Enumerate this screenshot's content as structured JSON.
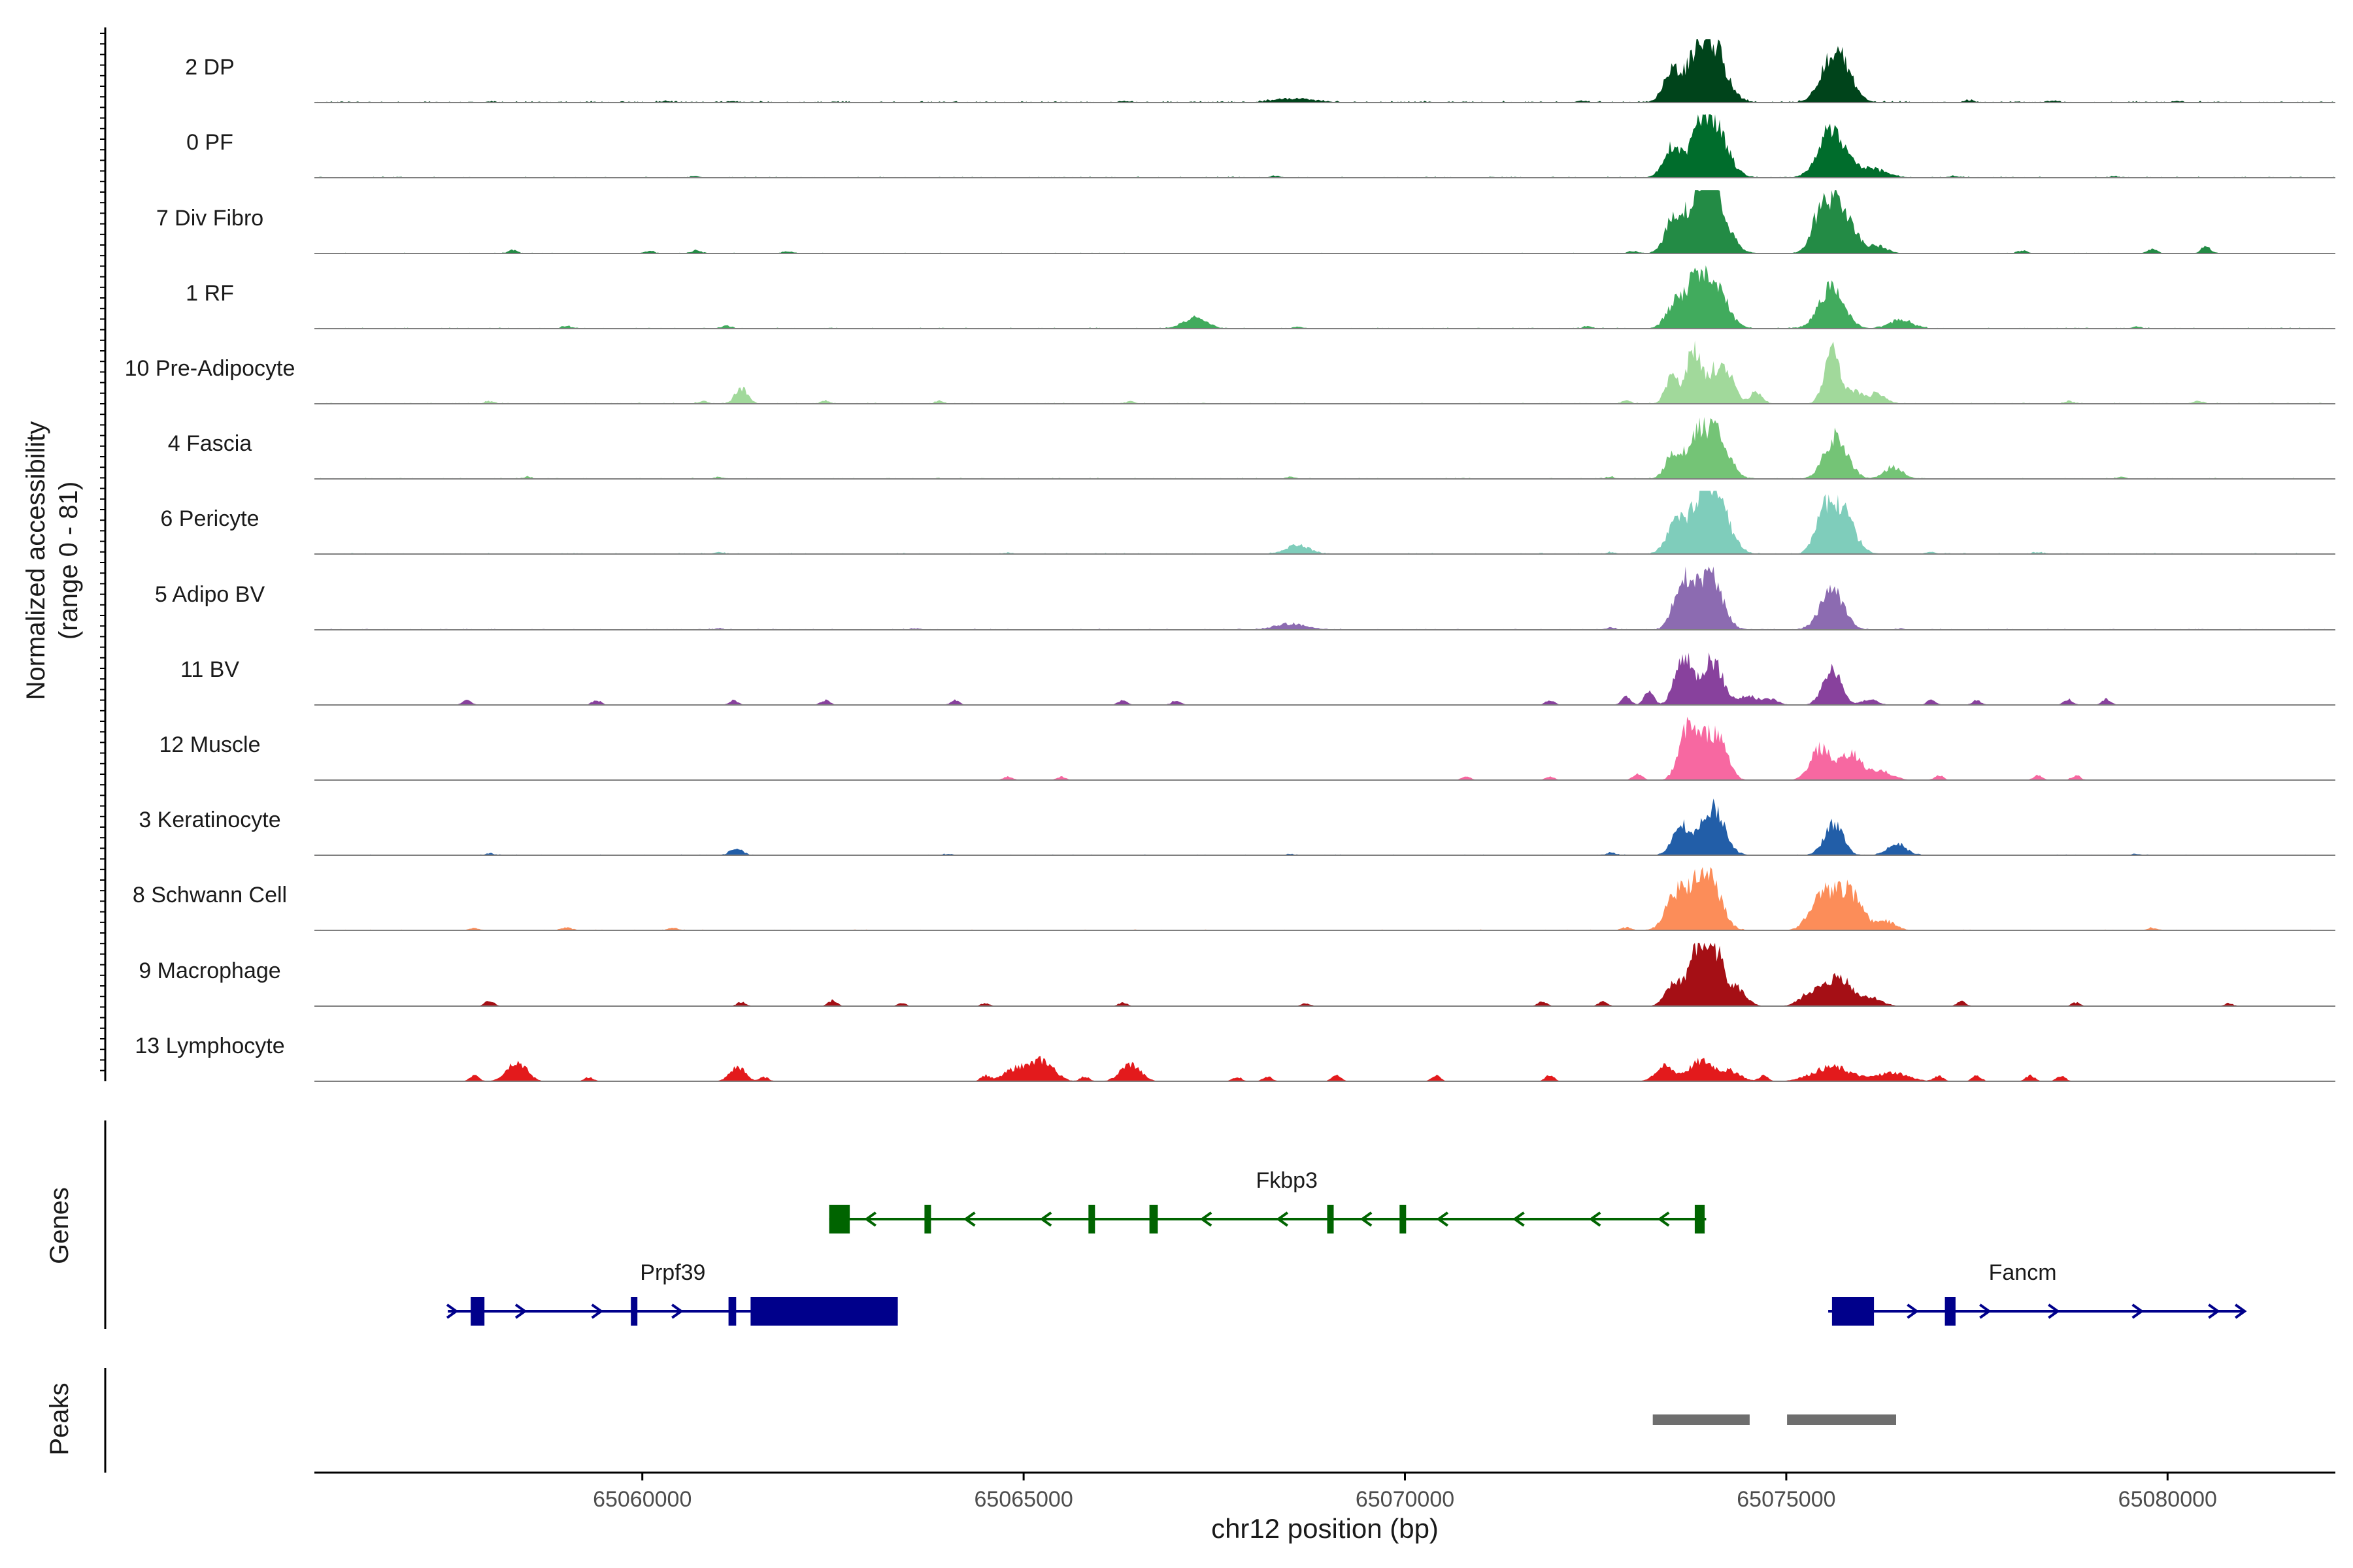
{
  "chart_data": {
    "type": "area",
    "title": "",
    "xlabel": "chr12 position (bp)",
    "ylabel": "Normalized accessibility\n(range 0 - 81)",
    "ylabel_lines": [
      "Normalized accessibility",
      "(range 0 - 81)"
    ],
    "yrange": [
      0,
      81
    ],
    "xlim": [
      65055700,
      65082200
    ],
    "x_ticks": [
      65060000,
      65065000,
      65070000,
      65075000,
      65080000
    ],
    "x_tick_labels": [
      "65060000",
      "65065000",
      "65070000",
      "65075000",
      "65080000"
    ],
    "panel_labels": {
      "genes": "Genes",
      "peaks": "Peaks"
    },
    "tracks": [
      {
        "name": "2 DP",
        "color": "#00441b",
        "bg": 0.03,
        "peaks": [
          [
            65073500,
            0.55,
            110
          ],
          [
            65073800,
            0.45,
            120
          ],
          [
            65074020,
            1.0,
            180
          ],
          [
            65075650,
            0.92,
            170
          ],
          [
            65068550,
            0.07,
            250
          ]
        ],
        "noise": [
          [
            65058000,
            0.015
          ],
          [
            65060300,
            0.02
          ],
          [
            65061200,
            0.02
          ],
          [
            65066300,
            0.02
          ],
          [
            65072300,
            0.03
          ],
          [
            65077400,
            0.04
          ],
          [
            65078500,
            0.03
          ],
          [
            65080100,
            0.02
          ]
        ]
      },
      {
        "name": "0 PF",
        "color": "#006d2c",
        "bg": 0.02,
        "peaks": [
          [
            65073500,
            0.55,
            110
          ],
          [
            65073850,
            0.5,
            120
          ],
          [
            65074030,
            0.95,
            180
          ],
          [
            65075600,
            0.85,
            170
          ],
          [
            65076100,
            0.15,
            200
          ]
        ],
        "noise": [
          [
            65060700,
            0.02
          ],
          [
            65068300,
            0.03
          ],
          [
            65077200,
            0.03
          ],
          [
            65079300,
            0.02
          ]
        ]
      },
      {
        "name": "7 Div Fibro",
        "color": "#238b45",
        "bg": 0.015,
        "peaks": [
          [
            65073550,
            0.7,
            120
          ],
          [
            65073850,
            0.75,
            120
          ],
          [
            65074050,
            1.0,
            170
          ],
          [
            65075450,
            0.55,
            120
          ],
          [
            65075700,
            0.85,
            170
          ],
          [
            65076200,
            0.12,
            120
          ]
        ],
        "noise": [
          [
            65058300,
            0.06
          ],
          [
            65060100,
            0.04
          ],
          [
            65060700,
            0.05
          ],
          [
            65061900,
            0.04
          ],
          [
            65073000,
            0.04
          ],
          [
            65078100,
            0.05
          ],
          [
            65079800,
            0.08
          ],
          [
            65080500,
            0.12
          ]
        ]
      },
      {
        "name": "1 RF",
        "color": "#41ab5d",
        "bg": 0.02,
        "peaks": [
          [
            65073550,
            0.45,
            120
          ],
          [
            65073800,
            0.55,
            120
          ],
          [
            65074030,
            0.85,
            170
          ],
          [
            65075600,
            0.72,
            160
          ],
          [
            65076500,
            0.15,
            150
          ],
          [
            65067250,
            0.18,
            150
          ]
        ],
        "noise": [
          [
            65059000,
            0.04
          ],
          [
            65061100,
            0.05
          ],
          [
            65068600,
            0.03
          ],
          [
            65072400,
            0.04
          ],
          [
            65079600,
            0.03
          ]
        ]
      },
      {
        "name": "10 Pre-Adipocyte",
        "color": "#a1d99b",
        "bg": 0.02,
        "peaks": [
          [
            65073500,
            0.5,
            80
          ],
          [
            65073780,
            0.95,
            90
          ],
          [
            65074050,
            0.55,
            100
          ],
          [
            65074250,
            0.45,
            90
          ],
          [
            65074600,
            0.2,
            80
          ],
          [
            65075600,
            0.92,
            100
          ],
          [
            65075900,
            0.2,
            100
          ],
          [
            65076200,
            0.18,
            100
          ],
          [
            65061300,
            0.28,
            80
          ]
        ],
        "noise": [
          [
            65058000,
            0.04
          ],
          [
            65060800,
            0.05
          ],
          [
            65062400,
            0.05
          ],
          [
            65063900,
            0.04
          ],
          [
            65066400,
            0.04
          ],
          [
            65072900,
            0.05
          ],
          [
            65078700,
            0.04
          ],
          [
            65080400,
            0.05
          ]
        ]
      },
      {
        "name": "4 Fascia",
        "color": "#74c476",
        "bg": 0.02,
        "peaks": [
          [
            65073520,
            0.45,
            100
          ],
          [
            65073800,
            0.6,
            110
          ],
          [
            65074060,
            0.85,
            160
          ],
          [
            65075650,
            0.72,
            150
          ],
          [
            65076400,
            0.2,
            120
          ]
        ],
        "noise": [
          [
            65058500,
            0.03
          ],
          [
            65061000,
            0.03
          ],
          [
            65068500,
            0.03
          ],
          [
            65072700,
            0.03
          ],
          [
            65079400,
            0.03
          ]
        ]
      },
      {
        "name": "6 Pericyte",
        "color": "#7fcdbb",
        "bg": 0.02,
        "peaks": [
          [
            65073550,
            0.5,
            120
          ],
          [
            65073850,
            0.6,
            140
          ],
          [
            65074070,
            1.0,
            170
          ],
          [
            65075500,
            0.55,
            120
          ],
          [
            65075720,
            0.75,
            160
          ],
          [
            65068600,
            0.15,
            150
          ]
        ],
        "noise": [
          [
            65061000,
            0.03
          ],
          [
            65064800,
            0.02
          ],
          [
            65072700,
            0.03
          ],
          [
            65076900,
            0.03
          ],
          [
            65078300,
            0.03
          ]
        ]
      },
      {
        "name": "5 Adipo BV",
        "color": "#8c6bb1",
        "bg": 0.02,
        "peaks": [
          [
            65073650,
            0.85,
            120
          ],
          [
            65074000,
            1.0,
            150
          ],
          [
            65075600,
            0.72,
            150
          ],
          [
            65068500,
            0.1,
            200
          ]
        ],
        "noise": [
          [
            65061000,
            0.02
          ],
          [
            65063600,
            0.02
          ],
          [
            65072700,
            0.03
          ],
          [
            65076500,
            0.02
          ]
        ]
      },
      {
        "name": "11 BV",
        "color": "#88419d",
        "bg": 0.0,
        "peaks": [
          [
            65073650,
            0.8,
            110
          ],
          [
            65074020,
            0.8,
            140
          ],
          [
            65074500,
            0.15,
            120
          ],
          [
            65075600,
            0.6,
            120
          ],
          [
            65074800,
            0.1,
            100
          ],
          [
            65076100,
            0.1,
            100
          ]
        ],
        "noise": [
          [
            65057700,
            0.08
          ],
          [
            65059400,
            0.08
          ],
          [
            65061200,
            0.08
          ],
          [
            65062400,
            0.08
          ],
          [
            65064100,
            0.08
          ],
          [
            65066300,
            0.08
          ],
          [
            65067000,
            0.08
          ],
          [
            65071900,
            0.08
          ],
          [
            65072900,
            0.14
          ],
          [
            65073200,
            0.25
          ],
          [
            65076900,
            0.08
          ],
          [
            65077500,
            0.08
          ],
          [
            65078700,
            0.1
          ],
          [
            65079200,
            0.1
          ]
        ]
      },
      {
        "name": "12 Muscle",
        "color": "#f768a1",
        "bg": 0.0,
        "peaks": [
          [
            65073700,
            0.9,
            110
          ],
          [
            65073950,
            0.6,
            120
          ],
          [
            65074150,
            0.55,
            110
          ],
          [
            65075450,
            0.55,
            130
          ],
          [
            65075850,
            0.45,
            140
          ],
          [
            65076250,
            0.15,
            150
          ]
        ],
        "noise": [
          [
            65064800,
            0.06
          ],
          [
            65065500,
            0.06
          ],
          [
            65070800,
            0.06
          ],
          [
            65071900,
            0.06
          ],
          [
            65073050,
            0.12
          ],
          [
            65077000,
            0.08
          ],
          [
            65078300,
            0.08
          ],
          [
            65078800,
            0.08
          ]
        ]
      },
      {
        "name": "3 Keratinocyte",
        "color": "#225ea8",
        "bg": 0.015,
        "peaks": [
          [
            65073620,
            0.5,
            110
          ],
          [
            65074030,
            0.85,
            150
          ],
          [
            65075620,
            0.55,
            120
          ],
          [
            65076450,
            0.2,
            120
          ],
          [
            65061230,
            0.12,
            80
          ]
        ],
        "noise": [
          [
            65058000,
            0.03
          ],
          [
            65064000,
            0.02
          ],
          [
            65068500,
            0.02
          ],
          [
            65072700,
            0.04
          ],
          [
            65079600,
            0.02
          ]
        ]
      },
      {
        "name": "8 Schwann Cell",
        "color": "#fc8d59",
        "bg": 0.015,
        "peaks": [
          [
            65073550,
            0.6,
            130
          ],
          [
            65073850,
            0.75,
            140
          ],
          [
            65074060,
            0.6,
            130
          ],
          [
            65075450,
            0.6,
            140
          ],
          [
            65075800,
            0.7,
            170
          ],
          [
            65076300,
            0.15,
            130
          ]
        ],
        "noise": [
          [
            65057800,
            0.04
          ],
          [
            65059000,
            0.05
          ],
          [
            65060400,
            0.04
          ],
          [
            65072900,
            0.05
          ],
          [
            65079800,
            0.04
          ]
        ]
      },
      {
        "name": "9 Macrophage",
        "color": "#a50f15",
        "bg": 0.0,
        "peaks": [
          [
            65073550,
            0.4,
            120
          ],
          [
            65073820,
            0.85,
            100
          ],
          [
            65074050,
            1.0,
            120
          ],
          [
            65074350,
            0.3,
            120
          ],
          [
            65075350,
            0.25,
            150
          ],
          [
            65075700,
            0.5,
            150
          ],
          [
            65076100,
            0.15,
            150
          ]
        ],
        "noise": [
          [
            65058000,
            0.1
          ],
          [
            65061300,
            0.07
          ],
          [
            65062500,
            0.1
          ],
          [
            65063400,
            0.05
          ],
          [
            65064500,
            0.05
          ],
          [
            65066300,
            0.06
          ],
          [
            65068700,
            0.05
          ],
          [
            65071800,
            0.08
          ],
          [
            65072600,
            0.08
          ],
          [
            65077300,
            0.08
          ],
          [
            65078800,
            0.06
          ],
          [
            65080800,
            0.05
          ]
        ]
      },
      {
        "name": "13 Lymphocyte",
        "color": "#e31a1c",
        "bg": 0.0,
        "peaks": [
          [
            65058350,
            0.35,
            130
          ],
          [
            65061250,
            0.25,
            100
          ],
          [
            65064900,
            0.22,
            150
          ],
          [
            65065250,
            0.35,
            150
          ],
          [
            65066400,
            0.3,
            130
          ],
          [
            65073400,
            0.25,
            120
          ],
          [
            65073900,
            0.35,
            180
          ],
          [
            65074300,
            0.15,
            120
          ],
          [
            65075600,
            0.25,
            250
          ],
          [
            65076400,
            0.15,
            200
          ]
        ],
        "noise": [
          [
            65057800,
            0.1
          ],
          [
            65059300,
            0.07
          ],
          [
            65061600,
            0.07
          ],
          [
            65064500,
            0.1
          ],
          [
            65065800,
            0.08
          ],
          [
            65067800,
            0.08
          ],
          [
            65068200,
            0.08
          ],
          [
            65069100,
            0.1
          ],
          [
            65070400,
            0.1
          ],
          [
            65071900,
            0.1
          ],
          [
            65074700,
            0.1
          ],
          [
            65077000,
            0.1
          ],
          [
            65077500,
            0.1
          ],
          [
            65078200,
            0.1
          ],
          [
            65078600,
            0.1
          ]
        ]
      }
    ],
    "genes": [
      {
        "name": "Fkbp3",
        "strand": "-",
        "color": "#006400",
        "start": 65062450,
        "end": 65073950,
        "exons": [
          [
            65062450,
            65062720,
            "utr"
          ],
          [
            65063700,
            65063780,
            "cds"
          ],
          [
            65065850,
            65065920,
            "cds"
          ],
          [
            65066650,
            65066760,
            "cds"
          ],
          [
            65068980,
            65069060,
            "cds"
          ],
          [
            65069930,
            65070010,
            "cds"
          ],
          [
            65073800,
            65073930,
            "cds"
          ]
        ],
        "arrows": [
          65063000,
          65064300,
          65065300,
          65067400,
          65068400,
          65069500,
          65070500,
          65071500,
          65072500,
          65073400
        ]
      },
      {
        "name": "Prpf39",
        "strand": "+",
        "color": "#00008b",
        "start": 65057450,
        "end": 65063350,
        "exons": [
          [
            65057750,
            65057930,
            "cds"
          ],
          [
            65059850,
            65059920,
            "cds"
          ],
          [
            65061130,
            65061230,
            "cds"
          ],
          [
            65061420,
            65063350,
            "utr"
          ]
        ],
        "arrows": [
          65057500,
          65058400,
          65059400,
          65060450
        ]
      },
      {
        "name": "Fancm",
        "strand": "+",
        "color": "#00008b",
        "start": 65075550,
        "end": 65081000,
        "exons": [
          [
            65075600,
            65076150,
            "utr"
          ],
          [
            65077080,
            65077220,
            "cds"
          ]
        ],
        "arrows": [
          65076650,
          65077600,
          65078500,
          65079600,
          65080600,
          65080950
        ]
      }
    ],
    "peaks_regions": [
      [
        65073250,
        65074520
      ],
      [
        65075010,
        65076440
      ]
    ]
  }
}
